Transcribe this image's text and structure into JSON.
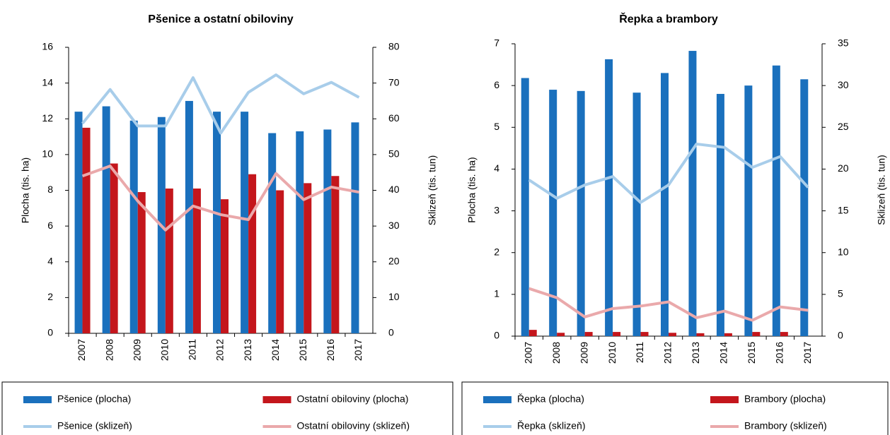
{
  "chart_data": [
    {
      "type": "combo",
      "title": "Pšenice a ostatní obiloviny",
      "ylabel": "Plocha (tis. ha)",
      "y2label": "Sklizeň (tis. tun)",
      "categories": [
        "2007",
        "2008",
        "2009",
        "2010",
        "2011",
        "2012",
        "2013",
        "2014",
        "2015",
        "2016",
        "2017"
      ],
      "ylim": [
        0,
        16
      ],
      "yticks": [
        0,
        2,
        4,
        6,
        8,
        10,
        12,
        14,
        16
      ],
      "y2lim": [
        0,
        80
      ],
      "y2ticks": [
        0,
        10,
        20,
        30,
        40,
        50,
        60,
        70,
        80
      ],
      "grid": false,
      "series": [
        {
          "name": "Pšenice (plocha)",
          "type": "bar",
          "color": "#1a70bd",
          "values": [
            12.4,
            12.7,
            11.9,
            12.1,
            13.0,
            12.4,
            12.4,
            11.2,
            11.3,
            11.4,
            11.8
          ]
        },
        {
          "name": "Ostatní obiloviny (plocha)",
          "type": "bar",
          "color": "#c4161c",
          "values": [
            11.5,
            9.5,
            7.9,
            8.1,
            8.1,
            7.5,
            8.9,
            8.0,
            8.4,
            8.8,
            null
          ]
        },
        {
          "name": "Pšenice (sklizeň)",
          "type": "line",
          "axis": "y2",
          "color": "#a8cdea",
          "values": [
            58.7,
            68.2,
            58,
            58,
            71.5,
            56,
            67.4,
            72.3,
            67,
            70.2,
            66
          ]
        },
        {
          "name": "Ostatní obiloviny (sklizeň)",
          "type": "line",
          "axis": "y2",
          "color": "#eaa9ab",
          "values": [
            44,
            46.8,
            37,
            28.9,
            35.6,
            33.2,
            31.8,
            44.7,
            37.4,
            40.9,
            39.5
          ]
        }
      ]
    },
    {
      "type": "combo",
      "title": "Řepka a brambory",
      "ylabel": "Plocha (tis. ha)",
      "y2label": "Sklizeň (tis. tun)",
      "categories": [
        "2007",
        "2008",
        "2009",
        "2010",
        "2011",
        "2012",
        "2013",
        "2014",
        "2015",
        "2016",
        "2017"
      ],
      "ylim": [
        0,
        7
      ],
      "yticks": [
        0,
        1,
        2,
        3,
        4,
        5,
        6,
        7
      ],
      "y2lim": [
        0,
        35
      ],
      "y2ticks": [
        0,
        5,
        10,
        15,
        20,
        25,
        30,
        35
      ],
      "grid": false,
      "series": [
        {
          "name": "Řepka (plocha)",
          "type": "bar",
          "color": "#1a70bd",
          "values": [
            6.18,
            5.9,
            5.87,
            6.63,
            5.83,
            6.3,
            6.83,
            5.8,
            6.0,
            6.48,
            6.15
          ]
        },
        {
          "name": "Brambory (plocha)",
          "type": "bar",
          "color": "#c4161c",
          "values": [
            0.15,
            0.08,
            0.1,
            0.1,
            0.1,
            0.08,
            0.07,
            0.07,
            0.1,
            0.1,
            null
          ]
        },
        {
          "name": "Řepka (sklizeň)",
          "type": "line",
          "axis": "y2",
          "color": "#a8cdea",
          "values": [
            18.7,
            16.5,
            18.1,
            19.1,
            16,
            18.1,
            23,
            22.6,
            20.2,
            21.5,
            17.8
          ]
        },
        {
          "name": "Brambory (sklizeň)",
          "type": "line",
          "axis": "y2",
          "color": "#eaa9ab",
          "values": [
            5.7,
            4.6,
            2.3,
            3.3,
            3.6,
            4.1,
            2.2,
            3,
            1.9,
            3.5,
            3.1
          ]
        }
      ]
    }
  ]
}
